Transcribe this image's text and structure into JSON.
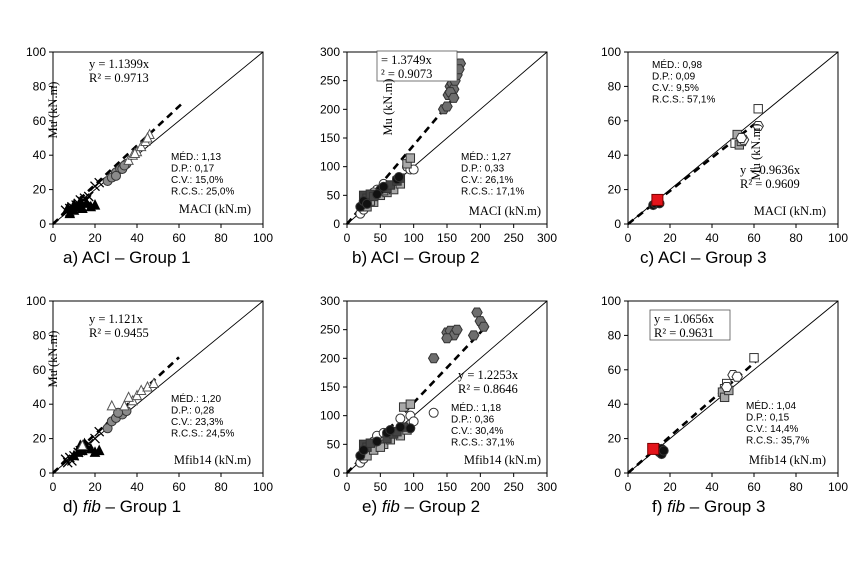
{
  "chart_data": [
    {
      "type": "scatter",
      "caption": {
        "letter": "a)",
        "name": "ACI",
        "group": "– Group 1"
      },
      "xlabel": "MACI (kN.m)",
      "ylabel": "Mu (kN.m)",
      "xlim": [
        0,
        100
      ],
      "ylim": [
        0,
        100
      ],
      "xticks": [
        "0",
        "20",
        "40",
        "60",
        "80",
        "100"
      ],
      "yticks": [
        "0",
        "20",
        "40",
        "60",
        "80",
        "100"
      ],
      "equation": "y = 1.1399x",
      "r2": "R² = 0.9713",
      "slope": 1.1399,
      "trend_xmax": 62,
      "stats": [
        "MÉD.: 1,13",
        "D.P.: 0,17",
        "C.V.: 15,0%",
        "R.C.S.: 25,0%"
      ],
      "series": [
        {
          "marker": "x",
          "points": [
            [
              6,
              8
            ],
            [
              8,
              9
            ],
            [
              9,
              10
            ],
            [
              10,
              9
            ],
            [
              12,
              12
            ],
            [
              14,
              13
            ],
            [
              15,
              15
            ],
            [
              16,
              14
            ],
            [
              20,
              22
            ],
            [
              22,
              24
            ],
            [
              8,
              7
            ],
            [
              11,
              11
            ],
            [
              13,
              14
            ],
            [
              17,
              16
            ]
          ]
        },
        {
          "marker": "triangle-filled",
          "points": [
            [
              8,
              6
            ],
            [
              10,
              8
            ],
            [
              12,
              10
            ],
            [
              14,
              9
            ],
            [
              16,
              12
            ],
            [
              18,
              10
            ],
            [
              20,
              11
            ],
            [
              10,
              11
            ],
            [
              13,
              13
            ],
            [
              7,
              9
            ]
          ]
        },
        {
          "marker": "circle-gray",
          "points": [
            [
              26,
              25
            ],
            [
              28,
              27
            ],
            [
              30,
              30
            ],
            [
              32,
              32
            ],
            [
              33,
              32
            ],
            [
              35,
              35
            ],
            [
              30,
              28
            ],
            [
              34,
              34
            ]
          ]
        },
        {
          "marker": "triangle-open",
          "points": [
            [
              36,
              37
            ],
            [
              38,
              40
            ],
            [
              40,
              42
            ],
            [
              42,
              45
            ],
            [
              44,
              48
            ],
            [
              46,
              52
            ],
            [
              45,
              50
            ],
            [
              39,
              41
            ]
          ]
        }
      ]
    },
    {
      "type": "scatter",
      "caption": {
        "letter": "b)",
        "name": "ACI",
        "group": "– Group 2"
      },
      "xlabel": "MACI (kN.m)",
      "ylabel": "Mu (kN.m)",
      "xlim": [
        0,
        300
      ],
      "ylim": [
        0,
        300
      ],
      "xticks": [
        "0",
        "50",
        "100",
        "150",
        "200",
        "250",
        "300"
      ],
      "yticks": [
        "0",
        "50",
        "100",
        "150",
        "200",
        "250",
        "300"
      ],
      "equation": "= 1.3749x",
      "r2": "² = 0.9073",
      "slope": 1.3749,
      "trend_xmax": 165,
      "stats": [
        "MÉD.: 1,27",
        "D.P.: 0,33",
        "C.V.: 26,1%",
        "R.C.S.: 17,1%"
      ],
      "series": [
        {
          "marker": "circle-white",
          "points": [
            [
              20,
              18
            ],
            [
              25,
              25
            ],
            [
              30,
              35
            ],
            [
              45,
              60
            ],
            [
              55,
              70
            ],
            [
              90,
              100
            ],
            [
              95,
              95
            ],
            [
              100,
              95
            ],
            [
              40,
              55
            ]
          ]
        },
        {
          "marker": "square-gray",
          "points": [
            [
              30,
              30
            ],
            [
              40,
              38
            ],
            [
              50,
              50
            ],
            [
              60,
              55
            ],
            [
              70,
              60
            ],
            [
              80,
              70
            ],
            [
              90,
              105
            ],
            [
              95,
              115
            ],
            [
              35,
              40
            ],
            [
              55,
              58
            ]
          ]
        },
        {
          "marker": "square-dark",
          "points": [
            [
              25,
              50
            ],
            [
              30,
              45
            ],
            [
              35,
              52
            ],
            [
              40,
              48
            ],
            [
              60,
              62
            ],
            [
              65,
              68
            ],
            [
              75,
              75
            ],
            [
              80,
              80
            ]
          ]
        },
        {
          "marker": "circle-black",
          "points": [
            [
              20,
              30
            ],
            [
              25,
              40
            ],
            [
              30,
              35
            ],
            [
              50,
              60
            ],
            [
              55,
              65
            ],
            [
              75,
              78
            ],
            [
              78,
              82
            ],
            [
              45,
              52
            ]
          ]
        },
        {
          "marker": "hexagon-gray",
          "points": [
            [
              145,
              200
            ],
            [
              150,
              205
            ],
            [
              152,
              225
            ],
            [
              155,
              240
            ],
            [
              158,
              245
            ],
            [
              160,
              235
            ],
            [
              162,
              250
            ],
            [
              165,
              260
            ],
            [
              170,
              280
            ],
            [
              168,
              270
            ],
            [
              155,
              230
            ],
            [
              160,
              220
            ]
          ]
        }
      ]
    },
    {
      "type": "scatter",
      "caption": {
        "letter": "c)",
        "name": "ACI",
        "group": "– Group 3"
      },
      "xlabel": "MACI (kN.m)",
      "ylabel": "Mu (kN.m)",
      "xlim": [
        0,
        100
      ],
      "ylim": [
        0,
        100
      ],
      "xticks": [
        "0",
        "20",
        "40",
        "60",
        "80",
        "100"
      ],
      "yticks": [
        "0",
        "20",
        "40",
        "60",
        "80",
        "100"
      ],
      "equation": "y = 0.9636x",
      "r2": "R² = 0.9609",
      "slope": 0.9636,
      "trend_xmax": 62,
      "stats": [
        "MÉD.: 0,98",
        "D.P.: 0,09",
        "C.V.: 9,5%",
        "R.C.S.: 57,1%"
      ],
      "series": [
        {
          "marker": "circle-black",
          "points": [
            [
              12,
              11
            ],
            [
              13,
              12
            ],
            [
              14,
              13
            ],
            [
              15,
              12
            ]
          ]
        },
        {
          "marker": "square-red",
          "points": [
            [
              14,
              14
            ]
          ]
        },
        {
          "marker": "square-white",
          "points": [
            [
              52,
              50
            ],
            [
              62,
              67
            ],
            [
              51,
              47
            ]
          ]
        },
        {
          "marker": "square-gray",
          "points": [
            [
              53,
              46
            ],
            [
              52,
              52
            ],
            [
              54,
              48
            ]
          ]
        },
        {
          "marker": "hexagon-white",
          "points": [
            [
              55,
              49
            ],
            [
              62,
              57
            ],
            [
              54,
              50
            ]
          ]
        }
      ]
    },
    {
      "type": "scatter",
      "caption": {
        "letter": "d)",
        "name": "fib",
        "group": "– Group 1"
      },
      "xlabel": "Mfib14 (kN.m)",
      "ylabel": "Mu (kN.m)",
      "xlim": [
        0,
        100
      ],
      "ylim": [
        0,
        100
      ],
      "xticks": [
        "0",
        "20",
        "40",
        "60",
        "80",
        "100"
      ],
      "yticks": [
        "0",
        "20",
        "40",
        "60",
        "80",
        "100"
      ],
      "equation": "y = 1.121x",
      "r2": "R² = 0.9455",
      "slope": 1.121,
      "trend_xmax": 60,
      "stats": [
        "MÉD.: 1,20",
        "D.P.: 0,28",
        "C.V.: 23,3%",
        "R.C.S.: 24,5%"
      ],
      "series": [
        {
          "marker": "x",
          "points": [
            [
              6,
              8
            ],
            [
              7,
              6
            ],
            [
              8,
              9
            ],
            [
              10,
              10
            ],
            [
              12,
              12
            ],
            [
              15,
              15
            ],
            [
              17,
              17
            ],
            [
              20,
              20
            ],
            [
              22,
              24
            ],
            [
              9,
              7
            ],
            [
              13,
              13
            ]
          ]
        },
        {
          "marker": "triangle-filled",
          "points": [
            [
              10,
              10
            ],
            [
              12,
              12
            ],
            [
              14,
              13
            ],
            [
              16,
              15
            ],
            [
              18,
              14
            ],
            [
              20,
              12
            ],
            [
              22,
              13
            ],
            [
              15,
              17
            ],
            [
              13,
              16
            ]
          ]
        },
        {
          "marker": "circle-gray",
          "points": [
            [
              26,
              26
            ],
            [
              28,
              30
            ],
            [
              30,
              32
            ],
            [
              33,
              34
            ],
            [
              35,
              36
            ],
            [
              31,
              35
            ]
          ]
        },
        {
          "marker": "triangle-open",
          "points": [
            [
              28,
              39
            ],
            [
              34,
              39
            ],
            [
              38,
              42
            ],
            [
              40,
              45
            ],
            [
              42,
              48
            ],
            [
              45,
              50
            ],
            [
              48,
              52
            ],
            [
              36,
              44
            ],
            [
              14,
              16
            ]
          ]
        }
      ]
    },
    {
      "type": "scatter",
      "caption": {
        "letter": "e)",
        "name": "fib",
        "group": "– Group 2"
      },
      "xlabel": "Mfib14 (kN.m)",
      "ylabel": "Mu (kN.m)",
      "xlim": [
        0,
        300
      ],
      "ylim": [
        0,
        300
      ],
      "xticks": [
        "0",
        "50",
        "100",
        "150",
        "200",
        "250",
        "300"
      ],
      "yticks": [
        "0",
        "50",
        "100",
        "150",
        "200",
        "250",
        "300"
      ],
      "equation": "y = 1.2253x",
      "r2": "R² = 0.8646",
      "slope": 1.2253,
      "trend_xmax": 205,
      "stats": [
        "MÉD.: 1,18",
        "D.P.: 0,36",
        "C.V.: 30,4%",
        "R.C.S.: 37,1%"
      ],
      "series": [
        {
          "marker": "circle-white",
          "points": [
            [
              20,
              18
            ],
            [
              25,
              25
            ],
            [
              40,
              55
            ],
            [
              45,
              65
            ],
            [
              80,
              95
            ],
            [
              95,
              100
            ],
            [
              100,
              90
            ],
            [
              130,
              105
            ],
            [
              55,
              70
            ]
          ]
        },
        {
          "marker": "square-gray",
          "points": [
            [
              30,
              30
            ],
            [
              40,
              40
            ],
            [
              55,
              50
            ],
            [
              65,
              58
            ],
            [
              80,
              65
            ],
            [
              90,
              75
            ],
            [
              85,
              115
            ],
            [
              95,
              120
            ],
            [
              50,
              45
            ]
          ]
        },
        {
          "marker": "square-dark",
          "points": [
            [
              25,
              50
            ],
            [
              30,
              45
            ],
            [
              35,
              52
            ],
            [
              60,
              60
            ],
            [
              70,
              68
            ],
            [
              75,
              72
            ],
            [
              85,
              80
            ]
          ]
        },
        {
          "marker": "circle-black",
          "points": [
            [
              20,
              30
            ],
            [
              25,
              40
            ],
            [
              45,
              55
            ],
            [
              60,
              70
            ],
            [
              80,
              80
            ],
            [
              95,
              78
            ],
            [
              65,
              75
            ]
          ]
        },
        {
          "marker": "hexagon-gray",
          "points": [
            [
              130,
              200
            ],
            [
              150,
              245
            ],
            [
              155,
              248
            ],
            [
              160,
              240
            ],
            [
              165,
              250
            ],
            [
              190,
              240
            ],
            [
              195,
              280
            ],
            [
              200,
              265
            ],
            [
              205,
              255
            ],
            [
              150,
              235
            ]
          ]
        }
      ]
    },
    {
      "type": "scatter",
      "caption": {
        "letter": "f)",
        "name": "fib",
        "group": "– Group 3"
      },
      "xlabel": "Mfib14 (kN.m)",
      "ylabel": "Mu (kN.m)",
      "xlim": [
        0,
        100
      ],
      "ylim": [
        0,
        100
      ],
      "xticks": [
        "0",
        "20",
        "40",
        "60",
        "80",
        "100"
      ],
      "yticks": [
        "0",
        "20",
        "40",
        "60",
        "80",
        "100"
      ],
      "equation": "y = 1.0656x",
      "r2": "R² = 0.9631",
      "slope": 1.0656,
      "trend_xmax": 62,
      "stats": [
        "MÉD.: 1,04",
        "D.P.: 0,15",
        "C.V.: 14,4%",
        "R.C.S.: 35,7%"
      ],
      "series": [
        {
          "marker": "circle-black",
          "points": [
            [
              15,
              12
            ],
            [
              16,
              14
            ],
            [
              16,
              11
            ],
            [
              17,
              13
            ]
          ]
        },
        {
          "marker": "square-red",
          "points": [
            [
              12,
              14
            ]
          ]
        },
        {
          "marker": "square-white",
          "points": [
            [
              47,
              52
            ],
            [
              60,
              67
            ],
            [
              46,
              49
            ]
          ]
        },
        {
          "marker": "square-gray",
          "points": [
            [
              45,
              47
            ],
            [
              46,
              44
            ],
            [
              48,
              48
            ]
          ]
        },
        {
          "marker": "hexagon-white",
          "points": [
            [
              50,
              57
            ],
            [
              52,
              56
            ],
            [
              47,
              50
            ]
          ]
        }
      ]
    }
  ]
}
